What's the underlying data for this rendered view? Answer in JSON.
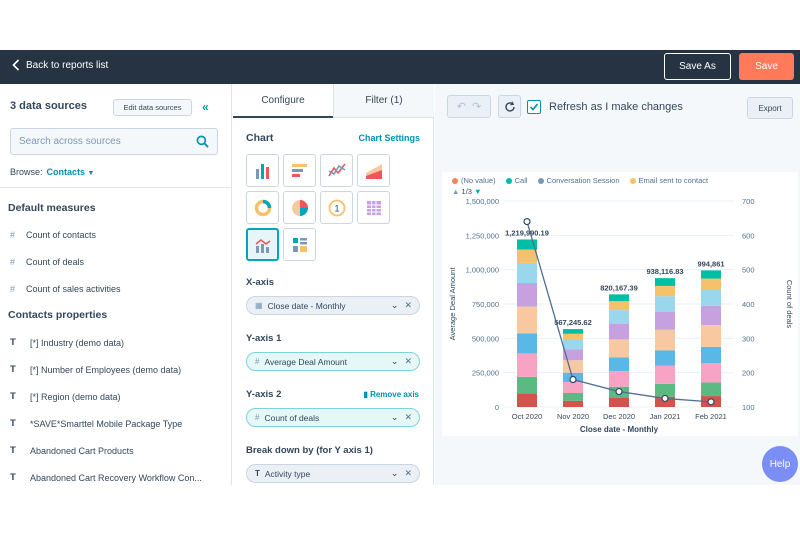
{
  "topbar": {
    "back_label": "Back to reports list",
    "save_as_label": "Save As",
    "save_label": "Save"
  },
  "left": {
    "title": "3 data sources",
    "edit_label": "Edit data sources",
    "collapse_icon": "double-chevron-left-icon",
    "search_placeholder": "Search across sources",
    "browse_label": "Browse:",
    "browse_value": "Contacts",
    "default_measures_title": "Default measures",
    "default_measures": [
      "Count of contacts",
      "Count of deals",
      "Count of sales activities"
    ],
    "contacts_properties_title": "Contacts properties",
    "contacts_properties": [
      "[*] Industry (demo data)",
      "[*] Number of Employees (demo data)",
      "[*] Region (demo data)",
      "*SAVE*Smarttel Mobile Package Type",
      "Abandoned Cart Products",
      "Abandoned Cart Recovery Workflow Con..."
    ]
  },
  "mid": {
    "tabs": [
      {
        "label": "Configure"
      },
      {
        "label": "Filter (1)"
      }
    ],
    "chart_title": "Chart",
    "chart_settings": "Chart Settings",
    "xaxis_label": "X-axis",
    "xaxis_value": "Close date - Monthly",
    "yaxis1_label": "Y-axis 1",
    "yaxis1_value": "Average Deal Amount",
    "yaxis2_label": "Y-axis 2",
    "remove_axis": "Remove axis",
    "yaxis2_value": "Count of deals",
    "breakdown_label": "Break down by (for Y axis 1)",
    "breakdown_value": "Activity type"
  },
  "right": {
    "refresh_label": "Refresh as I make changes",
    "export_label": "Export",
    "legend": [
      {
        "name": "(No value)",
        "color": "#f2845c"
      },
      {
        "name": "Call",
        "color": "#00bda5"
      },
      {
        "name": "Conversation Session",
        "color": "#7c98b6"
      },
      {
        "name": "Email sent to contact",
        "color": "#f5c26b"
      }
    ],
    "pager": "1/3",
    "help_label": "Help"
  },
  "chart_data": {
    "type": "bar",
    "categories": [
      "Oct 2020",
      "Nov 2020",
      "Dec 2020",
      "Jan 2021",
      "Feb 2021"
    ],
    "totals": [
      1219990.19,
      567245.62,
      820167.39,
      938116.83,
      994861
    ],
    "total_labels": [
      "1,219,990.19",
      "567,245.62",
      "820,167.39",
      "938,116.83",
      "994,861"
    ],
    "xlabel": "Close date - Monthly",
    "ylabel": "Average Deal Amount",
    "y2label": "Count of deals",
    "ylim": [
      0,
      1500000
    ],
    "yticks": [
      "0",
      "250,000",
      "500,000",
      "750,000",
      "1,000,000",
      "1,250,000",
      "1,500,000"
    ],
    "y2lim": [
      100,
      700
    ],
    "y2ticks": [
      "100",
      "200",
      "300",
      "400",
      "500",
      "600",
      "700"
    ],
    "line_values": [
      640,
      180,
      145,
      125,
      115
    ],
    "segment_colors": [
      "#d3524b",
      "#5bb982",
      "#f6a3c4",
      "#5ab8e6",
      "#f8c9a0",
      "#c7a0e0",
      "#9ad6ec",
      "#f5c26b",
      "#00bda5"
    ],
    "segment_fractions": [
      [
        0.08,
        0.1,
        0.14,
        0.12,
        0.16,
        0.14,
        0.12,
        0.08,
        0.06
      ],
      [
        0.08,
        0.1,
        0.14,
        0.12,
        0.16,
        0.14,
        0.12,
        0.08,
        0.06
      ],
      [
        0.08,
        0.1,
        0.14,
        0.12,
        0.16,
        0.14,
        0.12,
        0.08,
        0.06
      ],
      [
        0.08,
        0.1,
        0.14,
        0.12,
        0.16,
        0.14,
        0.12,
        0.08,
        0.06
      ],
      [
        0.08,
        0.1,
        0.14,
        0.12,
        0.16,
        0.14,
        0.12,
        0.08,
        0.06
      ]
    ]
  }
}
